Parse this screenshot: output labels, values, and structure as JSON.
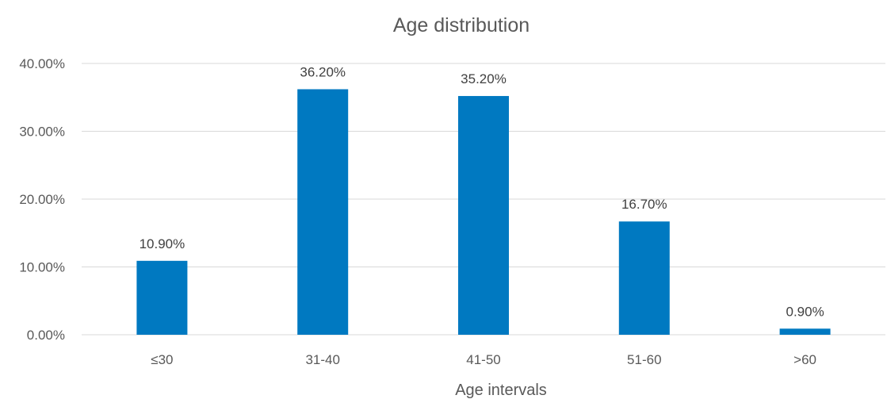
{
  "chart_data": {
    "type": "bar",
    "title": "Age distribution",
    "xlabel": "Age intervals",
    "ylabel": "",
    "categories": [
      "≤30",
      "31-40",
      "41-50",
      "51-60",
      ">60"
    ],
    "values": [
      10.9,
      36.2,
      35.2,
      16.7,
      0.9
    ],
    "data_labels": [
      "10.90%",
      "36.20%",
      "35.20%",
      "16.70%",
      "0.90%"
    ],
    "y_ticks": [
      0,
      10,
      20,
      30,
      40
    ],
    "y_tick_labels": [
      "0.00%",
      "10.00%",
      "20.00%",
      "30.00%",
      "40.00%"
    ],
    "ylim": [
      0,
      40
    ],
    "grid": true,
    "legend": "none",
    "bar_color": "#0079C1",
    "grid_color": "#D9D9D9",
    "text_color": "#595959"
  }
}
